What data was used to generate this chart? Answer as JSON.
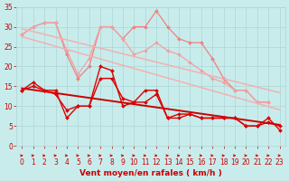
{
  "x": [
    0,
    1,
    2,
    3,
    4,
    5,
    6,
    7,
    8,
    9,
    10,
    11,
    12,
    13,
    14,
    15,
    16,
    17,
    18,
    19,
    20,
    21,
    22,
    23
  ],
  "series": [
    {
      "name": "rafales_light1",
      "color": "#f08080",
      "linewidth": 0.9,
      "marker": "D",
      "markersize": 2.0,
      "linestyle": "-",
      "y": [
        28,
        30,
        31,
        31,
        23,
        17,
        20,
        30,
        30,
        27,
        30,
        30,
        34,
        30,
        27,
        26,
        26,
        22,
        17,
        14,
        14,
        11,
        11,
        null
      ]
    },
    {
      "name": "rafales_light2",
      "color": "#f4a0a0",
      "linewidth": 0.9,
      "marker": "D",
      "markersize": 2.0,
      "linestyle": "-",
      "y": [
        28,
        30,
        31,
        31,
        24,
        18,
        22,
        30,
        30,
        27,
        23,
        24,
        26,
        24,
        23,
        21,
        19,
        17,
        16,
        14,
        14,
        11,
        11,
        null
      ]
    },
    {
      "name": "trend_light1",
      "color": "#f4b0b0",
      "linewidth": 1.1,
      "marker": null,
      "markersize": 0,
      "linestyle": "-",
      "y": [
        29.5,
        28.8,
        28.1,
        27.4,
        26.7,
        26.0,
        25.3,
        24.6,
        23.9,
        23.2,
        22.5,
        21.8,
        21.1,
        20.4,
        19.7,
        19.0,
        18.3,
        17.6,
        16.9,
        16.2,
        15.5,
        14.8,
        14.1,
        13.4
      ]
    },
    {
      "name": "trend_light2",
      "color": "#f4b0b0",
      "linewidth": 1.1,
      "marker": null,
      "markersize": 0,
      "linestyle": "-",
      "y": [
        27.5,
        26.7,
        25.9,
        25.1,
        24.3,
        23.5,
        22.7,
        21.9,
        21.1,
        20.3,
        19.5,
        18.7,
        17.9,
        17.1,
        16.3,
        15.5,
        14.7,
        13.9,
        13.1,
        12.3,
        11.5,
        10.7,
        9.9,
        9.1
      ]
    },
    {
      "name": "vent_dark1",
      "color": "#dd0000",
      "linewidth": 1.0,
      "marker": "D",
      "markersize": 2.0,
      "linestyle": "-",
      "y": [
        14,
        15,
        14,
        14,
        7,
        10,
        10,
        20,
        19,
        10,
        11,
        14,
        14,
        7,
        7,
        8,
        7,
        7,
        7,
        7,
        5,
        5,
        6,
        5
      ]
    },
    {
      "name": "vent_dark_trend",
      "color": "#cc0000",
      "linewidth": 1.4,
      "marker": null,
      "markersize": 0,
      "linestyle": "-",
      "y": [
        14.5,
        14.1,
        13.7,
        13.3,
        12.9,
        12.5,
        12.1,
        11.7,
        11.3,
        10.9,
        10.5,
        10.1,
        9.7,
        9.3,
        8.9,
        8.5,
        8.1,
        7.7,
        7.3,
        6.9,
        6.5,
        6.1,
        5.7,
        5.3
      ]
    },
    {
      "name": "vent_dark3",
      "color": "#dd0000",
      "linewidth": 1.0,
      "marker": "D",
      "markersize": 2.0,
      "linestyle": "-",
      "y": [
        14,
        16,
        14,
        13,
        9,
        10,
        10,
        17,
        17,
        12,
        11,
        11,
        13,
        7,
        8,
        8,
        7,
        7,
        7,
        7,
        5,
        5,
        7,
        4
      ]
    }
  ],
  "xlabel": "Vent moyen/en rafales ( km/h )",
  "xlim": [
    -0.5,
    23.5
  ],
  "ylim": [
    0,
    35
  ],
  "yticks": [
    0,
    5,
    10,
    15,
    20,
    25,
    30,
    35
  ],
  "xticks": [
    0,
    1,
    2,
    3,
    4,
    5,
    6,
    7,
    8,
    9,
    10,
    11,
    12,
    13,
    14,
    15,
    16,
    17,
    18,
    19,
    20,
    21,
    22,
    23
  ],
  "bg_color": "#c8ecec",
  "grid_color": "#aed4d4",
  "tick_color": "#cc0000",
  "label_color": "#cc0000",
  "xlabel_fontsize": 6.5,
  "tick_fontsize": 5.5
}
